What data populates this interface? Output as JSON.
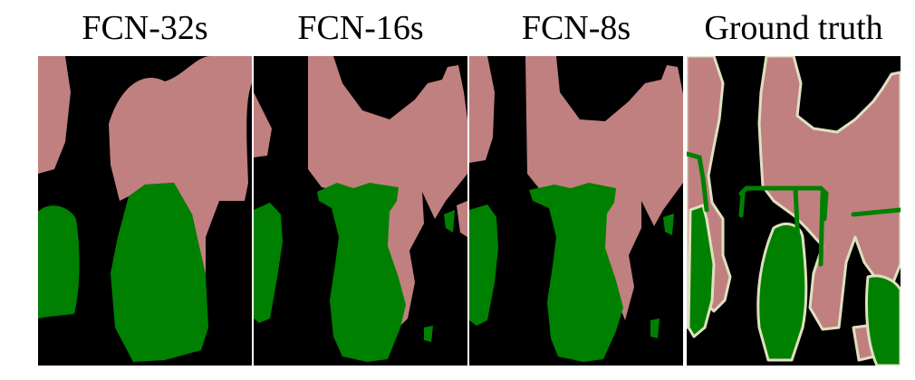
{
  "figure": {
    "panels": [
      {
        "title": "FCN-32s"
      },
      {
        "title": "FCN-16s"
      },
      {
        "title": "FCN-8s"
      },
      {
        "title": "Ground truth"
      }
    ],
    "colors": {
      "background": "#000000",
      "person": "#c08080",
      "bicycle": "#008000",
      "boundary": "#e0e0c0"
    }
  }
}
